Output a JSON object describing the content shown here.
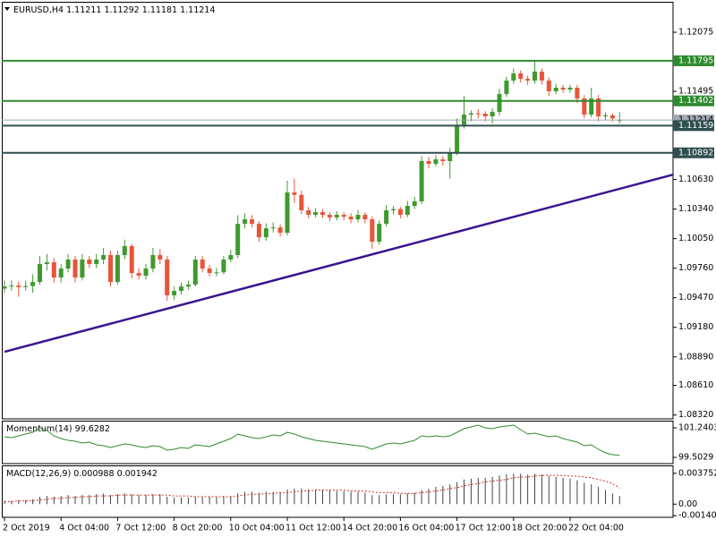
{
  "chart_data": [
    {
      "type": "candlestick",
      "symbol": "EURUSD,H4",
      "categories": [
        "2 Oct 2019",
        null,
        null,
        null,
        null,
        null,
        null,
        null,
        "4 Oct 04:00",
        null,
        null,
        null,
        null,
        null,
        null,
        null,
        "7 Oct 12:00",
        null,
        null,
        null,
        null,
        null,
        null,
        null,
        "8 Oct 20:00",
        null,
        null,
        null,
        null,
        null,
        null,
        null,
        "10 Oct 04:00",
        null,
        null,
        null,
        null,
        null,
        null,
        null,
        "11 Oct 12:00",
        null,
        null,
        null,
        null,
        null,
        null,
        null,
        "14 Oct 20:00",
        null,
        null,
        null,
        null,
        null,
        null,
        null,
        "16 Oct 04:00",
        null,
        null,
        null,
        null,
        null,
        null,
        null,
        "17 Oct 12:00",
        null,
        null,
        null,
        null,
        null,
        null,
        null,
        "18 Oct 20:00",
        null,
        null,
        null,
        null,
        null,
        null,
        null,
        "22 Oct 04:00",
        null,
        null,
        null,
        null,
        null,
        null,
        null
      ],
      "candles": [
        [
          1.0956,
          1.0964,
          1.0952,
          1.09581
        ],
        [
          1.09581,
          1.0964,
          1.0954,
          1.0959
        ],
        [
          1.0959,
          1.0963,
          1.0948,
          1.09575
        ],
        [
          1.09575,
          1.0964,
          1.0954,
          1.09585
        ],
        [
          1.09585,
          1.097,
          1.0952,
          1.09625
        ],
        [
          1.09625,
          1.0988,
          1.096,
          1.09801
        ],
        [
          1.09801,
          1.099,
          1.0974,
          1.09818
        ],
        [
          1.09818,
          1.0986,
          1.0962,
          1.09669
        ],
        [
          1.09669,
          1.098,
          1.0962,
          1.09757
        ],
        [
          1.09757,
          1.099,
          1.0972,
          1.09845
        ],
        [
          1.09845,
          1.0988,
          1.0962,
          1.09669
        ],
        [
          1.09669,
          1.099,
          1.0964,
          1.09845
        ],
        [
          1.09845,
          1.0988,
          1.0976,
          1.09801
        ],
        [
          1.09801,
          1.099,
          1.0976,
          1.09845
        ],
        [
          1.09845,
          1.0996,
          1.098,
          1.09889
        ],
        [
          1.09889,
          1.0993,
          1.0958,
          1.09625
        ],
        [
          1.09625,
          1.0993,
          1.096,
          1.09889
        ],
        [
          1.09889,
          1.1004,
          1.0985,
          1.09977
        ],
        [
          1.09977,
          1.1,
          1.0966,
          1.09713
        ],
        [
          1.09713,
          1.0976,
          1.0965,
          1.09686
        ],
        [
          1.09686,
          1.098,
          1.0965,
          1.09757
        ],
        [
          1.09757,
          1.0996,
          1.0972,
          1.09889
        ],
        [
          1.09889,
          1.0995,
          1.098,
          1.09845
        ],
        [
          1.09845,
          1.0988,
          1.0944,
          1.09494
        ],
        [
          1.09494,
          1.0958,
          1.0945,
          1.09537
        ],
        [
          1.09537,
          1.0962,
          1.095,
          1.09581
        ],
        [
          1.09581,
          1.0964,
          1.0955,
          1.09599
        ],
        [
          1.09599,
          1.0988,
          1.0958,
          1.09845
        ],
        [
          1.09845,
          1.0988,
          1.0972,
          1.09757
        ],
        [
          1.09757,
          1.0979,
          1.0968,
          1.09713
        ],
        [
          1.09713,
          1.0976,
          1.0968,
          1.0972
        ],
        [
          1.0972,
          1.0988,
          1.097,
          1.09845
        ],
        [
          1.09845,
          1.0994,
          1.0982,
          1.09889
        ],
        [
          1.09889,
          1.1028,
          1.0986,
          1.10196
        ],
        [
          1.10196,
          1.103,
          1.1015,
          1.1024
        ],
        [
          1.1024,
          1.1028,
          1.1016,
          1.10196
        ],
        [
          1.10196,
          1.1022,
          1.1002,
          1.10064
        ],
        [
          1.10064,
          1.102,
          1.1003,
          1.10152
        ],
        [
          1.10152,
          1.1021,
          1.1011,
          1.1016
        ],
        [
          1.1016,
          1.1019,
          1.1007,
          1.10108
        ],
        [
          1.10108,
          1.1062,
          1.1008,
          1.10503
        ],
        [
          1.10503,
          1.1064,
          1.104,
          1.1048
        ],
        [
          1.1048,
          1.1052,
          1.1029,
          1.10328
        ],
        [
          1.10328,
          1.1036,
          1.1025,
          1.10284
        ],
        [
          1.10284,
          1.1035,
          1.1026,
          1.1031
        ],
        [
          1.1031,
          1.1034,
          1.1025,
          1.10284
        ],
        [
          1.10284,
          1.1031,
          1.1022,
          1.10258
        ],
        [
          1.10258,
          1.1032,
          1.1023,
          1.10284
        ],
        [
          1.10284,
          1.1031,
          1.1023,
          1.10266
        ],
        [
          1.10266,
          1.103,
          1.102,
          1.1024
        ],
        [
          1.1024,
          1.1033,
          1.1021,
          1.10284
        ],
        [
          1.10284,
          1.1031,
          1.102,
          1.1024
        ],
        [
          1.1024,
          1.1027,
          1.0995,
          1.1002
        ],
        [
          1.1002,
          1.1023,
          1.0999,
          1.10196
        ],
        [
          1.10196,
          1.1038,
          1.1017,
          1.10328
        ],
        [
          1.10328,
          1.1037,
          1.1029,
          1.1034
        ],
        [
          1.1034,
          1.1036,
          1.1025,
          1.10284
        ],
        [
          1.10284,
          1.1042,
          1.1026,
          1.10372
        ],
        [
          1.10372,
          1.1046,
          1.1034,
          1.10416
        ],
        [
          1.10416,
          1.1086,
          1.1039,
          1.10811
        ],
        [
          1.10811,
          1.1085,
          1.1074,
          1.10784
        ],
        [
          1.10784,
          1.1087,
          1.1076,
          1.10828
        ],
        [
          1.10828,
          1.1086,
          1.1077,
          1.10811
        ],
        [
          1.10811,
          1.1094,
          1.1064,
          1.10898
        ],
        [
          1.10898,
          1.1123,
          1.1087,
          1.11162
        ],
        [
          1.11162,
          1.1145,
          1.1113,
          1.11267
        ],
        [
          1.11267,
          1.1131,
          1.112,
          1.1128
        ],
        [
          1.1128,
          1.1132,
          1.1123,
          1.11276
        ],
        [
          1.11276,
          1.113,
          1.112,
          1.1125
        ],
        [
          1.1125,
          1.1133,
          1.1118,
          1.11294
        ],
        [
          1.11294,
          1.1152,
          1.1126,
          1.11469
        ],
        [
          1.11469,
          1.1164,
          1.1144,
          1.11601
        ],
        [
          1.11601,
          1.1172,
          1.1157,
          1.11671
        ],
        [
          1.11671,
          1.117,
          1.1158,
          1.11618
        ],
        [
          1.11618,
          1.1165,
          1.1156,
          1.11601
        ],
        [
          1.11601,
          1.1179,
          1.1157,
          1.11689
        ],
        [
          1.11689,
          1.1172,
          1.1156,
          1.11601
        ],
        [
          1.11601,
          1.1163,
          1.1145,
          1.11496
        ],
        [
          1.11496,
          1.1157,
          1.1147,
          1.11531
        ],
        [
          1.11531,
          1.1156,
          1.1148,
          1.11513
        ],
        [
          1.11513,
          1.1156,
          1.1148,
          1.11531
        ],
        [
          1.11531,
          1.1156,
          1.1138,
          1.11425
        ],
        [
          1.11425,
          1.1146,
          1.1123,
          1.11267
        ],
        [
          1.11267,
          1.1153,
          1.1124,
          1.11425
        ],
        [
          1.11425,
          1.1146,
          1.112,
          1.1125
        ],
        [
          1.1125,
          1.1129,
          1.1121,
          1.1126
        ],
        [
          1.1126,
          1.1128,
          1.112,
          1.1123
        ],
        [
          1.11211,
          1.11292,
          1.11181,
          1.11214
        ]
      ],
      "up_color": "#3f9a2e",
      "down_color": "#e8553a",
      "ylim": [
        1.08282,
        1.12374
      ],
      "yticks": [
        1.12075,
        1.11495,
        {
          "value": 1.1063,
          "label": "1.10630"
        },
        {
          "value": 1.1034,
          "label": "1.10340"
        },
        {
          "value": 1.1005,
          "label": "1.10050"
        },
        {
          "value": 1.0976,
          "label": "1.09760"
        },
        {
          "value": 1.0947,
          "label": "1.09470"
        },
        {
          "value": 1.0918,
          "label": "1.09180"
        },
        {
          "value": 1.0889,
          "label": "1.08890"
        },
        {
          "value": 1.0861,
          "label": "1.08610"
        },
        {
          "value": 1.0832,
          "label": "1.08320"
        }
      ],
      "levels": [
        {
          "value": 1.11795,
          "color": "#2e8b2e"
        },
        {
          "value": 1.11402,
          "color": "#2e8b2e"
        },
        {
          "value": 1.11159,
          "color": "#2f4f4f"
        },
        {
          "value": 1.10892,
          "color": "#2f4f4f"
        }
      ],
      "trendline": {
        "color": "#3b1490",
        "points": [
          [
            0,
            1.0894
          ],
          [
            94.6,
            1.10679
          ]
        ]
      }
    },
    {
      "type": "line",
      "title": "Momentum(14)",
      "color": "#2e8b2e",
      "values": [
        100.714,
        100.662,
        100.767,
        100.872,
        100.977,
        101.24,
        101.082,
        100.767,
        100.609,
        100.503,
        100.451,
        100.345,
        100.398,
        100.24,
        100.187,
        100.082,
        100.187,
        100.293,
        100.24,
        100.135,
        100.082,
        100.187,
        100.135,
        99.924,
        99.977,
        100.082,
        100.029,
        100.24,
        100.187,
        100.135,
        100.293,
        100.451,
        100.609,
        100.872,
        100.767,
        100.662,
        100.609,
        100.714,
        100.819,
        100.767,
        100.977,
        100.872,
        100.714,
        100.609,
        100.503,
        100.451,
        100.398,
        100.345,
        100.293,
        100.24,
        100.187,
        100.135,
        99.977,
        100.135,
        100.293,
        100.345,
        100.293,
        100.398,
        100.503,
        100.767,
        100.714,
        100.767,
        100.714,
        100.767,
        100.977,
        101.187,
        101.293,
        101.398,
        101.24,
        101.187,
        101.293,
        101.345,
        101.398,
        101.135,
        100.872,
        100.924,
        100.819,
        100.714,
        100.767,
        100.609,
        100.503,
        100.398,
        100.187,
        100.24,
        99.977,
        99.766,
        99.661,
        99.6282
      ],
      "ylim": [
        99.1344,
        101.6615
      ],
      "yticks": [
        101.2403,
        99.5029
      ]
    },
    {
      "type": "macd",
      "title": "MACD(12,26,9)",
      "histogram_color": "#444444",
      "signal_color": "#d0302a",
      "histogram": [
        0.0004,
        0.0004,
        0.0005,
        0.0005,
        0.0006,
        0.0009,
        0.001,
        0.0009,
        0.001,
        0.0011,
        0.001,
        0.0011,
        0.0011,
        0.0012,
        0.0013,
        0.0011,
        0.0012,
        0.0013,
        0.0012,
        0.0011,
        0.0011,
        0.0012,
        0.0012,
        0.0009,
        0.0008,
        0.0008,
        0.0008,
        0.0009,
        0.0009,
        0.0009,
        0.0009,
        0.001,
        0.001,
        0.0013,
        0.0015,
        0.0015,
        0.0014,
        0.0015,
        0.0015,
        0.0015,
        0.0018,
        0.0019,
        0.0019,
        0.0018,
        0.0018,
        0.0017,
        0.0017,
        0.0016,
        0.0016,
        0.0015,
        0.0015,
        0.0014,
        0.0011,
        0.0011,
        0.0012,
        0.0012,
        0.0012,
        0.0013,
        0.0014,
        0.0017,
        0.0019,
        0.0021,
        0.0022,
        0.0024,
        0.0027,
        0.003,
        0.0031,
        0.0032,
        0.0032,
        0.0033,
        0.0035,
        0.0036,
        0.0037,
        0.0037,
        0.0036,
        0.0037,
        0.0036,
        0.0034,
        0.0033,
        0.0032,
        0.0031,
        0.0029,
        0.0026,
        0.0024,
        0.0021,
        0.0017,
        0.0013,
        0.000988
      ],
      "signal": [
        0.0003,
        0.0003,
        0.0004,
        0.0004,
        0.0004,
        0.0005,
        0.0006,
        0.0007,
        0.0007,
        0.0008,
        0.0008,
        0.0009,
        0.0009,
        0.001,
        0.001,
        0.001,
        0.0011,
        0.0011,
        0.0011,
        0.0011,
        0.0011,
        0.0011,
        0.0011,
        0.0011,
        0.001,
        0.001,
        0.001,
        0.0009,
        0.0009,
        0.0009,
        0.0009,
        0.0009,
        0.0009,
        0.001,
        0.0011,
        0.0012,
        0.0012,
        0.0013,
        0.0013,
        0.0014,
        0.0014,
        0.0015,
        0.0016,
        0.0016,
        0.0017,
        0.0017,
        0.0017,
        0.0017,
        0.0017,
        0.0016,
        0.0016,
        0.0016,
        0.0015,
        0.0014,
        0.0014,
        0.0014,
        0.0013,
        0.0013,
        0.0013,
        0.0014,
        0.0015,
        0.0016,
        0.0017,
        0.0019,
        0.002,
        0.0022,
        0.0024,
        0.0025,
        0.0027,
        0.0028,
        0.0029,
        0.003,
        0.0032,
        0.0033,
        0.0033,
        0.0034,
        0.0035,
        0.0035,
        0.0035,
        0.0035,
        0.0034,
        0.0034,
        0.0033,
        0.0032,
        0.003,
        0.0028,
        0.0025,
        0.001942
      ],
      "ylim": [
        -0.0016,
        0.0046
      ],
      "yticks": [
        0.003752,
        {
          "value": 0,
          "label": "0.00"
        },
        -0.001403
      ]
    }
  ]
}
